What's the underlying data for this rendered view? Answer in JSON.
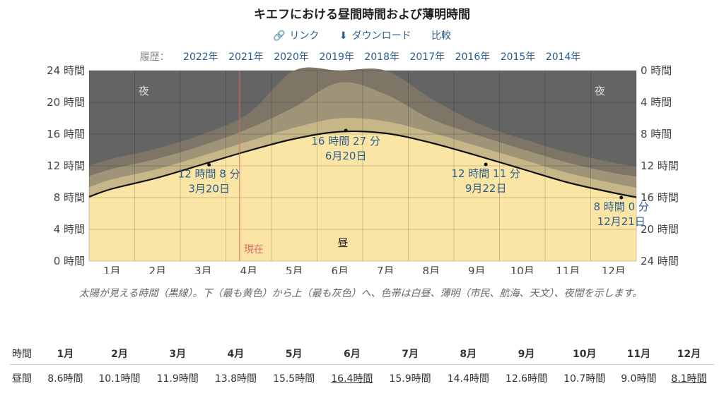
{
  "title": "キエフにおける昼間時間および薄明時間",
  "actions": {
    "link": "リンク",
    "download": "ダウンロード",
    "compare": "比較"
  },
  "history": {
    "label": "履歴：",
    "years": [
      "2022年",
      "2021年",
      "2020年",
      "2019年",
      "2018年",
      "2017年",
      "2016年",
      "2015年",
      "2014年"
    ]
  },
  "caption": "太陽が見える時間（黒線）。下（最も黄色）から上（最も灰色）へ、色帯は白昼、薄明（市民、航海、天文）、夜間を示します。",
  "colors": {
    "night": "#646464",
    "astro": "#7d7667",
    "nautical": "#9f9378",
    "civil": "#c6b688",
    "day": "#fbe5a4",
    "now": "#e06666",
    "label": "#2b5d8e"
  },
  "chart_data": {
    "type": "area",
    "months": [
      "1月",
      "2月",
      "3月",
      "4月",
      "5月",
      "6月",
      "7月",
      "8月",
      "9月",
      "10月",
      "11月",
      "12月"
    ],
    "y_left_ticks": [
      "0 時間",
      "4 時間",
      "8 時間",
      "12 時間",
      "16 時間",
      "20 時間",
      "24 時間"
    ],
    "y_right_ticks": [
      "24 時間",
      "20 時間",
      "16 時間",
      "12 時間",
      "8 時間",
      "4 時間",
      "0 時間"
    ],
    "ylim": [
      0,
      24
    ],
    "daylight": [
      8.1,
      9.1,
      10.5,
      12.2,
      13.9,
      15.4,
      16.3,
      16.1,
      14.9,
      13.3,
      11.6,
      9.9,
      8.6,
      8.05
    ],
    "civil": [
      9.3,
      10.3,
      11.6,
      13.3,
      15.1,
      16.8,
      18.0,
      17.6,
      16.2,
      14.5,
      12.8,
      11.1,
      9.8,
      9.25
    ],
    "nautical": [
      10.7,
      11.6,
      12.9,
      14.6,
      16.7,
      19.4,
      22.5,
      21.0,
      17.9,
      15.9,
      14.1,
      12.4,
      11.1,
      10.65
    ],
    "astro": [
      12.0,
      12.9,
      14.2,
      16.0,
      18.6,
      24.0,
      24.0,
      24.0,
      20.5,
      17.4,
      15.4,
      13.7,
      12.4,
      11.95
    ],
    "night_label": "夜",
    "day_label": "昼",
    "now_label": "現在",
    "annotations": [
      {
        "duration": "12 時間 8 分",
        "date": "3月20日",
        "month": 2.63,
        "value": 12.13
      },
      {
        "duration": "16 時間 27 分",
        "date": "6月20日",
        "month": 5.63,
        "value": 16.45
      },
      {
        "duration": "12 時間 11 分",
        "date": "9月22日",
        "month": 8.7,
        "value": 12.18
      },
      {
        "duration": "8 時間 0 分",
        "date": "12月21日",
        "month": 11.67,
        "value": 8.0
      }
    ],
    "now_month": 3.3
  },
  "table": {
    "header_label": "時間",
    "months": [
      "1月",
      "2月",
      "3月",
      "4月",
      "5月",
      "6月",
      "7月",
      "8月",
      "9月",
      "10月",
      "11月",
      "12月"
    ],
    "row_label": "昼間",
    "values": [
      "8.6時間",
      "10.1時間",
      "11.9時間",
      "13.8時間",
      "15.5時間",
      "16.4時間",
      "15.9時間",
      "14.4時間",
      "12.6時間",
      "10.7時間",
      "9.0時間",
      "8.1時間"
    ]
  }
}
